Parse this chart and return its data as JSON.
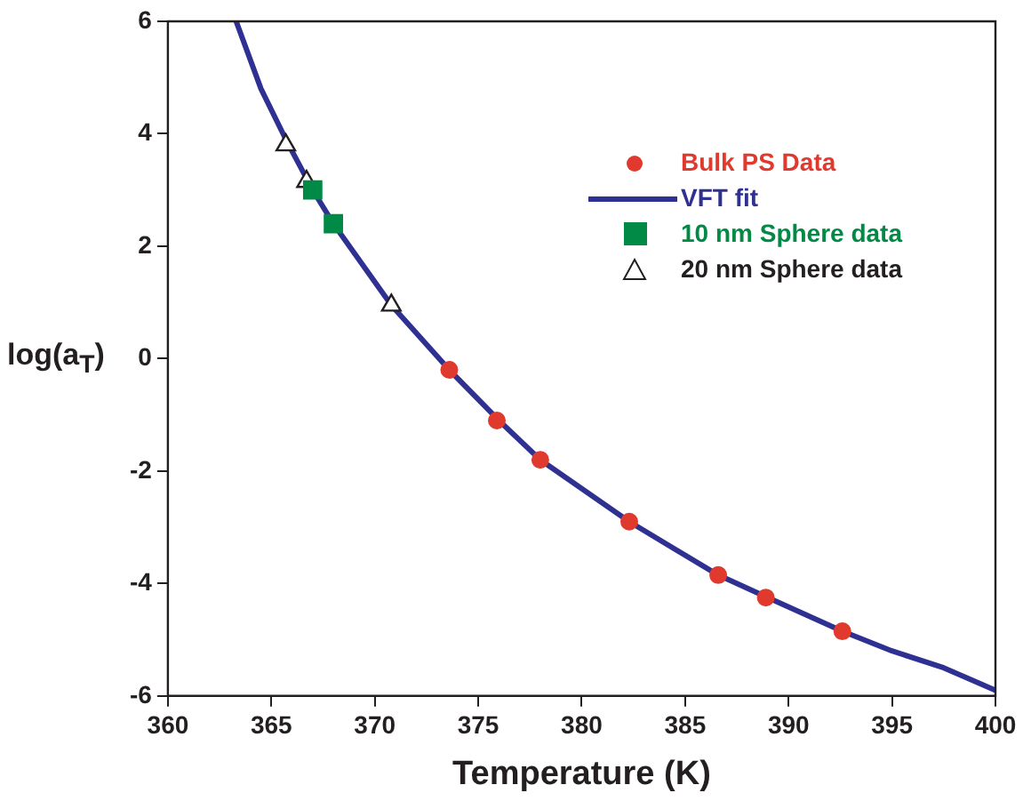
{
  "chart_data": {
    "type": "scatter",
    "xlabel": "Temperature (K)",
    "ylabel": "log(a$_{T}$)",
    "xlim": [
      360,
      400
    ],
    "xticks": [
      360,
      365,
      370,
      375,
      380,
      385,
      390,
      395,
      400
    ],
    "ylim": [
      -6,
      6
    ],
    "yticks": [
      -6,
      -4,
      -2,
      0,
      2,
      4,
      6
    ],
    "grid": false,
    "legend": "top right",
    "series": [
      {
        "name": "Bulk PS Data",
        "type": "scatter",
        "marker": "circle",
        "color": "#e03a2f",
        "x": [
          373.6,
          375.9,
          378.0,
          382.3,
          386.6,
          388.9,
          392.6
        ],
        "values": [
          -0.2,
          -1.1,
          -1.8,
          -2.9,
          -3.85,
          -4.25,
          -4.85
        ]
      },
      {
        "name": "VFT fit",
        "type": "line",
        "marker": "none",
        "color": "#2e3192",
        "x": [
          363.3,
          364.5,
          365.7,
          367,
          368,
          370.8,
          373.6,
          376,
          378,
          382.3,
          386.6,
          389,
          392.6,
          395,
          397.5,
          400
        ],
        "values": [
          6,
          4.8,
          3.9,
          3.0,
          2.4,
          0.95,
          -0.2,
          -1.1,
          -1.8,
          -2.9,
          -3.85,
          -4.25,
          -4.85,
          -5.2,
          -5.5,
          -5.9
        ]
      },
      {
        "name": "10 nm Sphere data",
        "type": "scatter",
        "marker": "square",
        "color": "#008a45",
        "x": [
          367.0,
          368.0
        ],
        "values": [
          3.0,
          2.4
        ]
      },
      {
        "name": "20 nm Sphere data",
        "type": "scatter",
        "marker": "triangle",
        "color": "#231f20",
        "x": [
          365.7,
          366.7,
          370.8
        ],
        "values": [
          3.8,
          3.15,
          0.95
        ]
      }
    ]
  }
}
